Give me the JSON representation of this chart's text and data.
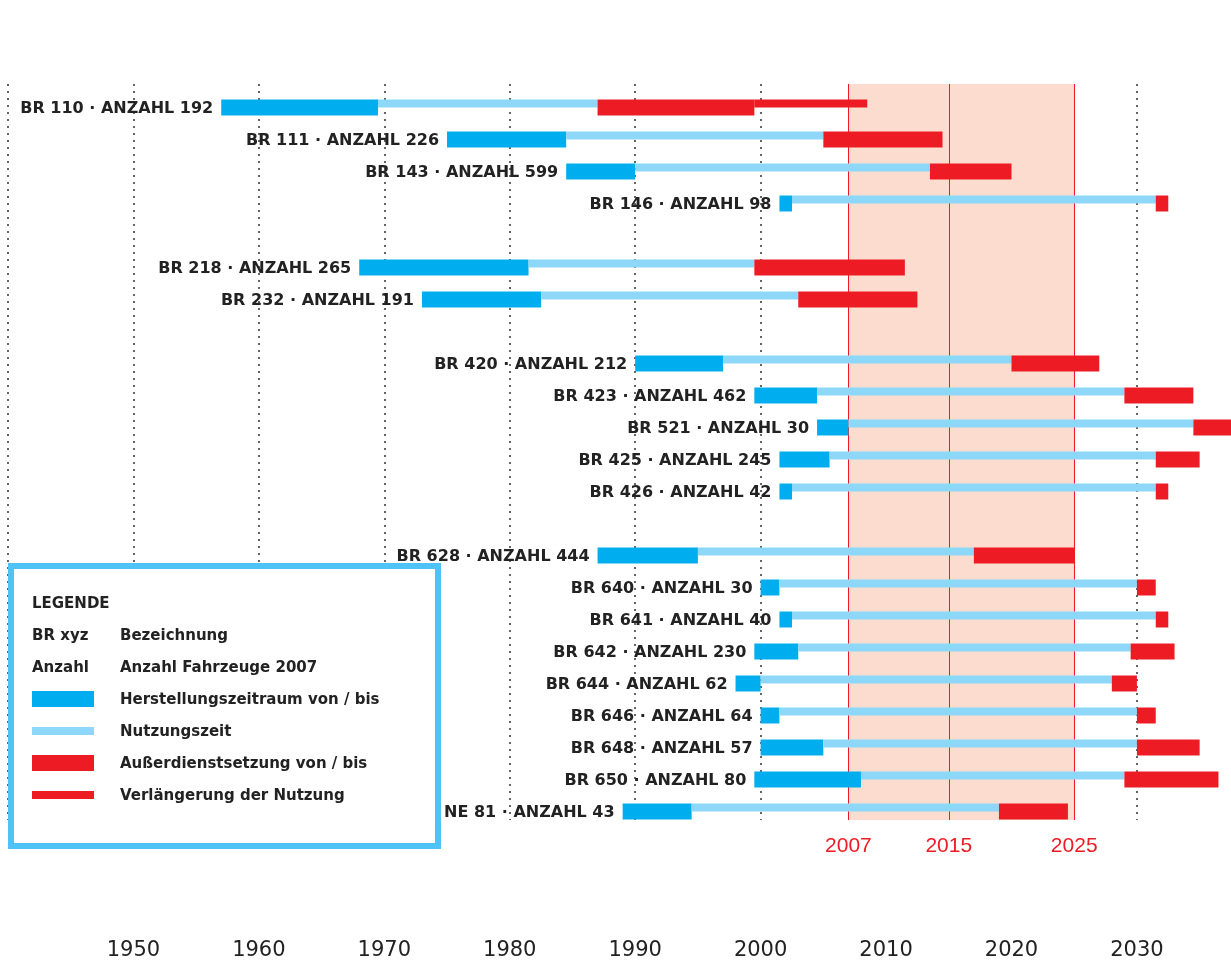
{
  "chart_data": {
    "type": "bar",
    "orientation": "horizontal",
    "categories": [
      "BR 110 · ANZAHL 192",
      "BR 111 · ANZAHL 226",
      "BR 143 · ANZAHL 599",
      "BR 146 · ANZAHL 98",
      null,
      "BR 218 · ANZAHL 265",
      "BR 232 · ANZAHL 191",
      null,
      "BR 420 · ANZAHL 212",
      "BR 423 · ANZAHL 462",
      "BR 521 · ANZAHL 30",
      "BR 425 · ANZAHL 245",
      "BR 426 · ANZAHL 42",
      null,
      "BR 628 · ANZAHL 444",
      "BR 640 · ANZAHL 30",
      "BR 641 · ANZAHL 40",
      "BR 642 · ANZAHL 230",
      "BR 644 · ANZAHL 62",
      "BR 646 · ANZAHL 64",
      "BR 648 · ANZAHL 57",
      "BR 650 · ANZAHL 80",
      "NE 81 · ANZAHL 43"
    ],
    "series": [
      {
        "name": "Herstellungszeitraum von / bis",
        "color": "#00aeef",
        "base": [
          1957,
          1975,
          1984.5,
          2001.5,
          null,
          1968,
          1973,
          null,
          1990,
          1999.5,
          2004.5,
          2001.5,
          2001.5,
          null,
          1987,
          2000,
          2001.5,
          1999.5,
          1998,
          2000,
          2000,
          1999.5,
          1989
        ],
        "values": [
          12.5,
          9.5,
          5.5,
          1,
          null,
          13.5,
          9.5,
          null,
          7,
          5,
          2.5,
          4,
          1,
          null,
          8,
          1.5,
          1,
          3.5,
          2,
          1.5,
          5,
          8.5,
          5.5
        ]
      },
      {
        "name": "Nutzungszeit",
        "color": "#8dd8f8",
        "base": [
          1969.5,
          1984.5,
          1990,
          2002.5,
          null,
          1981.5,
          1982.5,
          null,
          1997,
          2004.5,
          2007,
          2005.5,
          2002.5,
          null,
          1995,
          2001.5,
          2002.5,
          2003,
          2000,
          2001.5,
          2005,
          2008,
          1994.5
        ],
        "values": [
          17.5,
          20.5,
          23.5,
          29,
          null,
          18,
          20.5,
          null,
          23,
          24.5,
          27.5,
          26,
          29,
          null,
          22,
          28.5,
          29,
          26.5,
          28,
          28.5,
          25,
          21,
          24.5
        ]
      },
      {
        "name": "Außerdienstsetzung von / bis",
        "color": "#ed1c24",
        "base": [
          1987,
          2005,
          2013.5,
          2031.5,
          null,
          1999.5,
          2003,
          null,
          2020,
          2029,
          2034.5,
          2031.5,
          2031.5,
          null,
          2017,
          2030,
          2031.5,
          2029.5,
          2028,
          2030,
          2030,
          2029,
          2019
        ],
        "values": [
          12.5,
          9.5,
          6.5,
          1,
          null,
          12,
          9.5,
          null,
          7,
          5.5,
          3,
          3.5,
          1,
          null,
          8,
          1.5,
          1,
          3.5,
          2,
          1.5,
          5,
          7.5,
          5.5
        ]
      },
      {
        "name": "Verlängerung der Nutzung",
        "color": "#ed1c24",
        "base": [
          1999.5,
          null,
          null,
          null,
          null,
          null,
          null,
          null,
          null,
          null,
          null,
          null,
          null,
          null,
          null,
          null,
          null,
          null,
          null,
          null,
          null,
          null,
          null
        ],
        "values": [
          9,
          null,
          null,
          null,
          null,
          null,
          null,
          null,
          null,
          null,
          null,
          null,
          null,
          null,
          null,
          null,
          null,
          null,
          null,
          null,
          null,
          null,
          null
        ]
      }
    ],
    "xlim": [
      1940,
      2037.5
    ],
    "xticks": [
      {
        "value": 1940,
        "label": null
      },
      1950,
      1960,
      1970,
      1980,
      1990,
      2000,
      2010,
      2020,
      2030
    ],
    "grid": "x",
    "tick_labels": "x",
    "ref_lines": [
      {
        "axis": "x",
        "value": 2007,
        "label": "2007",
        "color": "#ed1c24"
      },
      {
        "axis": "x",
        "value": 2015,
        "label": "2015",
        "color": "#ed1c24"
      },
      {
        "axis": "x",
        "value": 2025,
        "label": "2025",
        "color": "#ed1c24"
      }
    ],
    "bands": [
      {
        "axis": "x",
        "from": 2007,
        "to": 2025,
        "color": "#fbdccf"
      }
    ],
    "legend": "bottom left",
    "legend_title": "LEGENDE",
    "annotations": [
      "BR xyz",
      "Bezeichnung",
      "Anzahl",
      "Anzahl Fahrzeuge 2007"
    ]
  }
}
